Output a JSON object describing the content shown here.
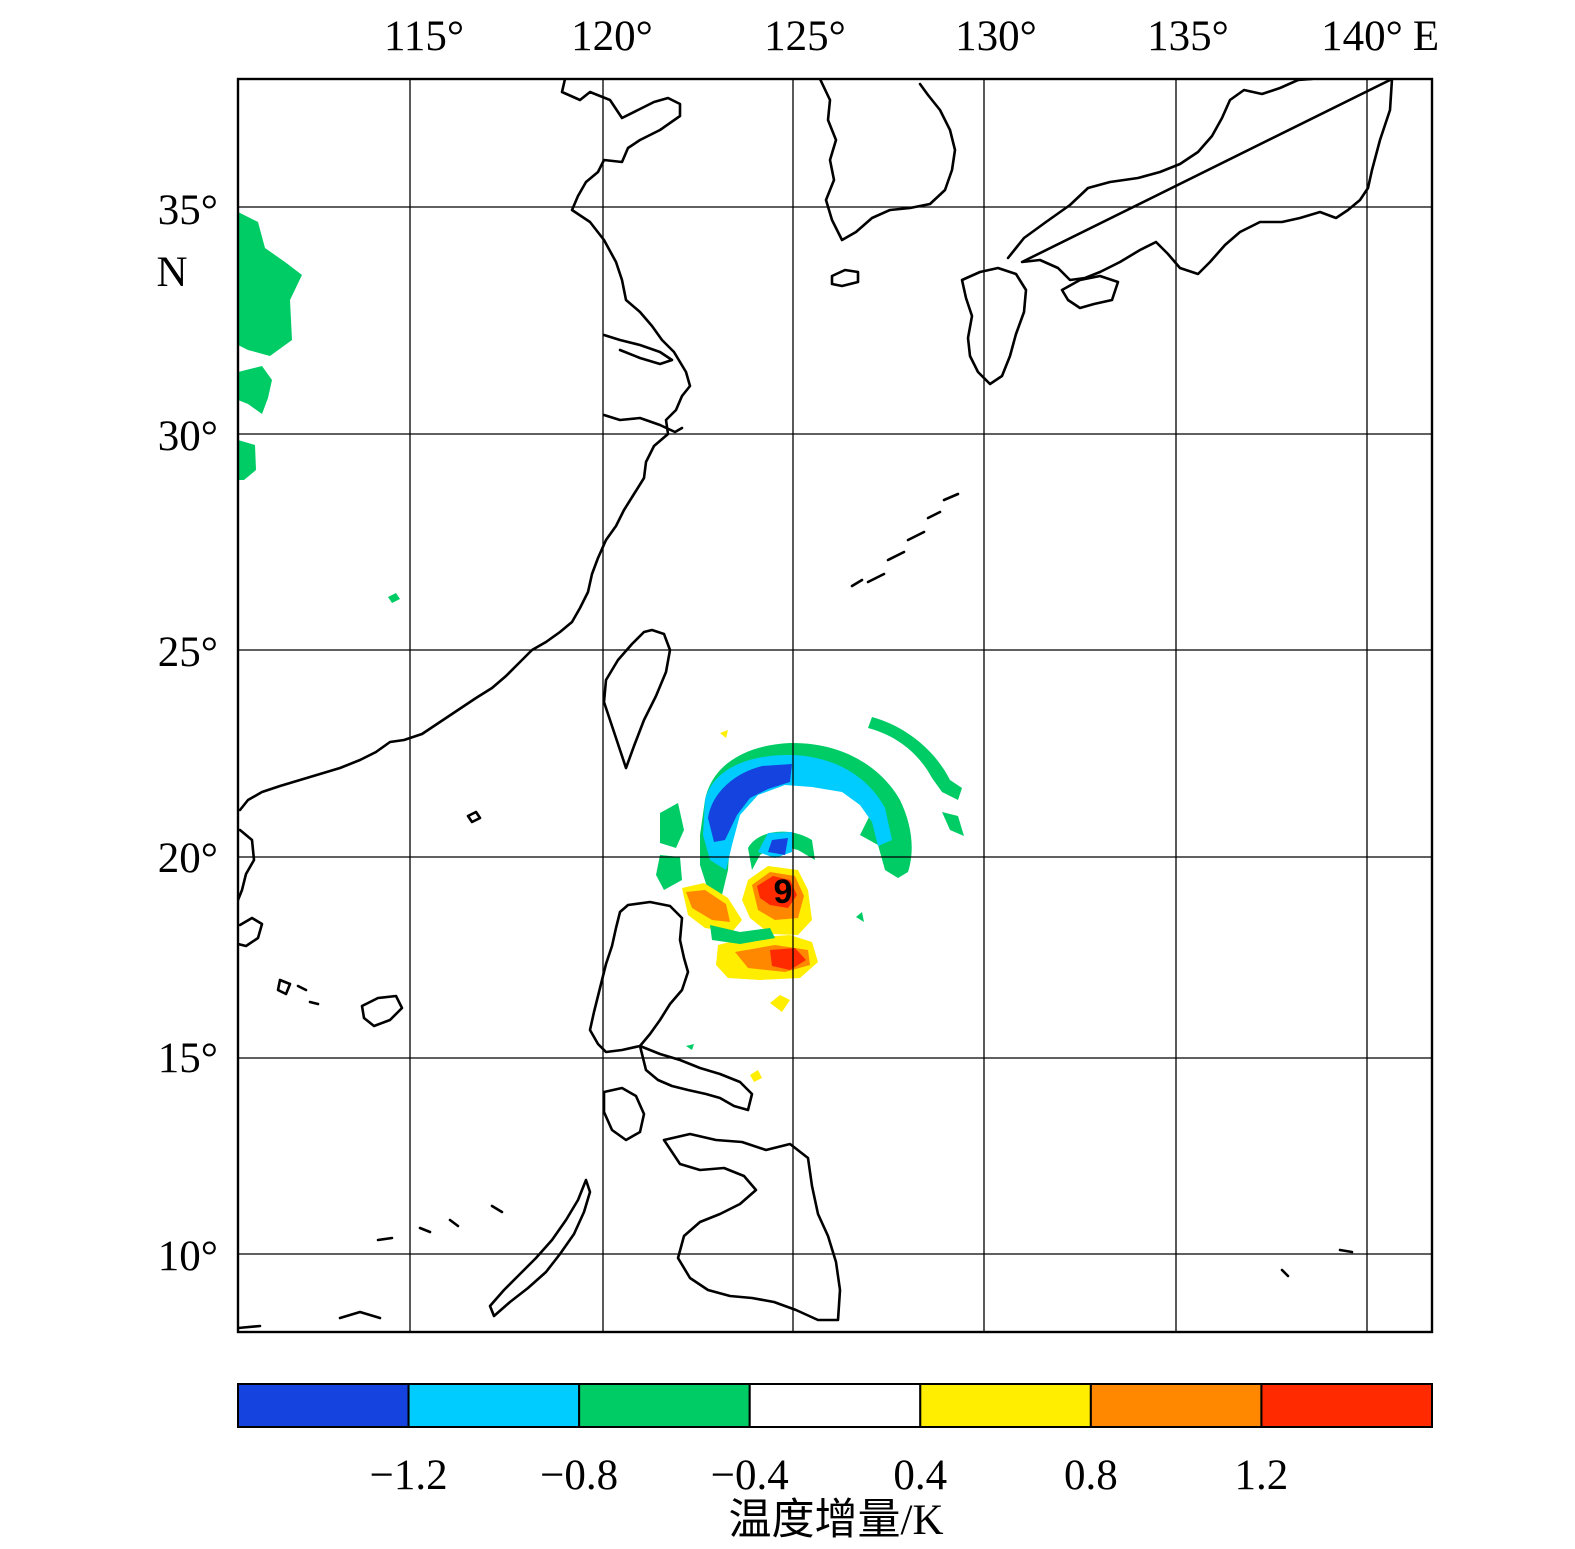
{
  "map": {
    "lon_labels": [
      "115°",
      "120°",
      "125°",
      "130°",
      "135°",
      "140°"
    ],
    "lon_suffix": "E",
    "lat_labels": [
      "35°",
      "30°",
      "25°",
      "20°",
      "15°",
      "10°"
    ],
    "lat_suffix": "N",
    "typhoon_symbol": "9"
  },
  "colorbar": {
    "ticks": [
      "−1.2",
      "−0.8",
      "−0.4",
      "0.4",
      "0.8",
      "1.2"
    ],
    "colors": [
      "#1443e0",
      "#00ccff",
      "#00cc66",
      "#ffffff",
      "#ffee00",
      "#ff8800",
      "#ff2a00"
    ],
    "title": "温度增量/K"
  }
}
